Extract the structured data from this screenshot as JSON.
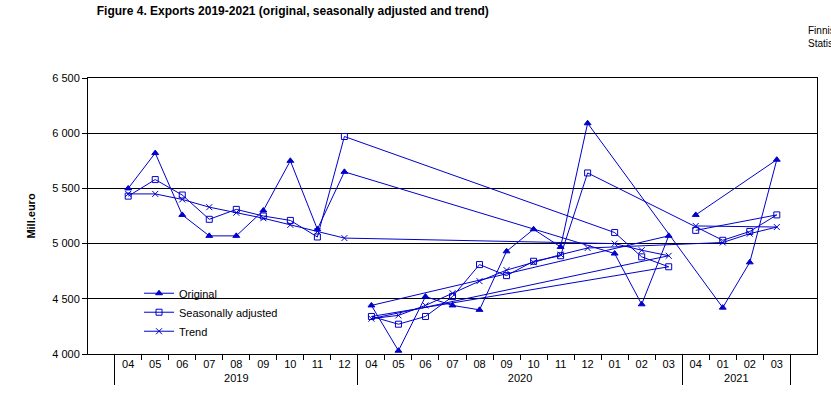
{
  "chart_data": {
    "type": "line",
    "title": "Figure 4. Exports 2019-2021 (original, seasonally adjusted and trend)",
    "source_lines": [
      "Finnish Customs",
      "Statistics"
    ],
    "y_label": "Mill.euro",
    "categories": [
      "04",
      "05",
      "06",
      "07",
      "08",
      "09",
      "10",
      "11",
      "12",
      "01",
      "02",
      "03",
      "04",
      "05",
      "06",
      "07",
      "08",
      "09",
      "10",
      "11",
      "12",
      "01",
      "02",
      "03",
      "04"
    ],
    "years": [
      "2019",
      "2019",
      "2019",
      "2019",
      "2019",
      "2019",
      "2019",
      "2019",
      "2019",
      "2020",
      "2020",
      "2020",
      "2020",
      "2020",
      "2020",
      "2020",
      "2020",
      "2020",
      "2020",
      "2020",
      "2020",
      "2021",
      "2021",
      "2021",
      "2021"
    ],
    "series": [
      {
        "name": "Original",
        "color": "#0000cc",
        "marker": "triangle-up",
        "values": [
          5500,
          5820,
          5260,
          5070,
          5070,
          5300,
          5750,
          5130,
          5650,
          4910,
          4450,
          5070,
          4440,
          4030,
          4520,
          4440,
          4400,
          4930,
          5130,
          4970,
          6090,
          4420,
          4830,
          5760,
          5260
        ]
      },
      {
        "name": "Seasonally adjusted",
        "color": "#0000cc",
        "marker": "square-open",
        "values": [
          5430,
          5580,
          5440,
          5220,
          5310,
          5250,
          5210,
          5060,
          5970,
          5100,
          4880,
          4790,
          4340,
          4270,
          4340,
          4520,
          4810,
          4710,
          4840,
          4890,
          5640,
          5030,
          5110,
          5260,
          5120
        ]
      },
      {
        "name": "Trend",
        "color": "#0000cc",
        "marker": "x-thin-open",
        "values": [
          5450,
          5450,
          5400,
          5330,
          5280,
          5230,
          5170,
          5110,
          5050,
          5000,
          4940,
          4890,
          4320,
          4350,
          4440,
          4550,
          4660,
          4760,
          4830,
          4900,
          4960,
          5010,
          5090,
          5150,
          5160
        ]
      }
    ],
    "ylim": [
      4000,
      6500
    ],
    "yticks": [
      {
        "value": 4000,
        "label": "4 000"
      },
      {
        "value": 4500,
        "label": "4 500"
      },
      {
        "value": 5000,
        "label": "5 000"
      },
      {
        "value": 5500,
        "label": "5 500"
      },
      {
        "value": 6000,
        "label": "6 000"
      },
      {
        "value": 6500,
        "label": "6 500"
      }
    ],
    "grid": true,
    "legend": "lower left"
  }
}
